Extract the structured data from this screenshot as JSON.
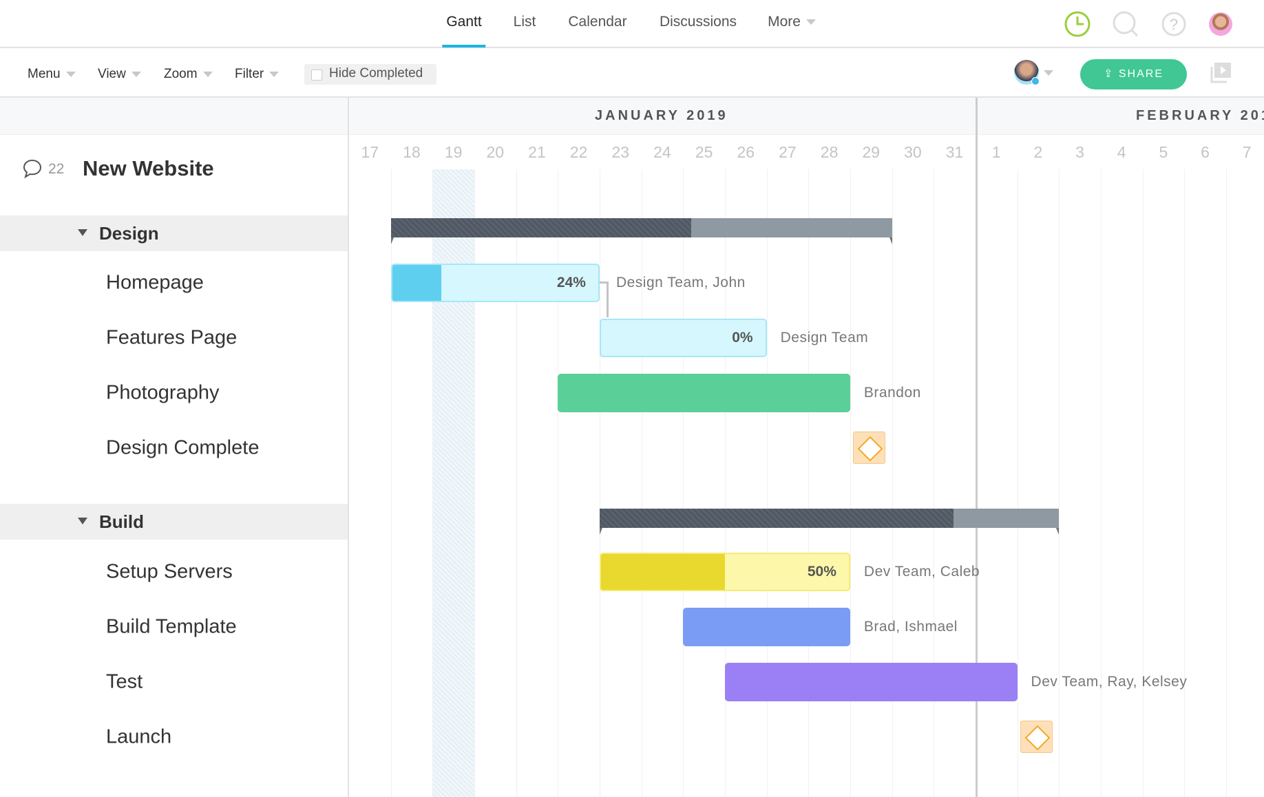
{
  "nav": {
    "tabs": [
      {
        "label": "Gantt",
        "active": true
      },
      {
        "label": "List"
      },
      {
        "label": "Calendar"
      },
      {
        "label": "Discussions"
      },
      {
        "label": "More"
      }
    ],
    "icons": [
      "clock-icon",
      "search-icon",
      "help-icon",
      "user-avatar"
    ],
    "clock_color": "#9ccc3a"
  },
  "toolbar": {
    "menu": "Menu",
    "view": "View",
    "zoom": "Zoom",
    "filter": "Filter",
    "hide_completed": "Hide Completed",
    "hide_completed_checked": false,
    "share": "SHARE"
  },
  "project": {
    "title": "New Website",
    "comments": "22"
  },
  "timeline": {
    "months": [
      {
        "label": "JANUARY 2019"
      },
      {
        "label": "FEBRUARY 201"
      }
    ],
    "days": [
      "17",
      "18",
      "19",
      "20",
      "21",
      "22",
      "23",
      "24",
      "25",
      "26",
      "27",
      "28",
      "29",
      "30",
      "31",
      "1",
      "2",
      "3",
      "4",
      "5",
      "6",
      "7"
    ],
    "today_index": 2
  },
  "groups": [
    {
      "label": "Design",
      "start": "Jan 18",
      "end": "Jan 29",
      "progress": 0.6,
      "tasks": [
        {
          "label": "Homepage",
          "start": 1,
          "end": 5,
          "progress": 24,
          "pct_label": "24%",
          "assignees": "Design Team, John",
          "color": "#5fcff0",
          "bg": "#d5f7fd"
        },
        {
          "label": "Features Page",
          "start": 6,
          "end": 9,
          "progress": 0,
          "pct_label": "0%",
          "assignees": "Design Team",
          "color": "#5fcff0",
          "bg": "#d5f7fd"
        },
        {
          "label": "Photography",
          "start": 5,
          "end": 11,
          "progress": 100,
          "assignees": "Brandon",
          "color": "#5acf98"
        },
        {
          "label": "Design Complete",
          "milestone": 12
        }
      ],
      "start_idx": 1,
      "end_idx": 12
    },
    {
      "label": "Build",
      "start": "Jan 23",
      "end": "Feb 2",
      "progress": 0.77,
      "tasks": [
        {
          "label": "Setup Servers",
          "start": 6,
          "end": 11,
          "progress": 50,
          "pct_label": "50%",
          "assignees": "Dev Team, Caleb",
          "color": "#e9d82d",
          "bg": "#fdf7aa"
        },
        {
          "label": "Build Template",
          "start": 8,
          "end": 11,
          "progress": 100,
          "assignees": "Brad, Ishmael",
          "color": "#7b9cf5"
        },
        {
          "label": "Test",
          "start": 9,
          "end": 15,
          "progress": 100,
          "assignees": "Dev Team, Ray, Kelsey",
          "color": "#9b7ff5"
        },
        {
          "label": "Launch",
          "milestone": 16
        }
      ],
      "start_idx": 6,
      "end_idx": 16
    }
  ]
}
